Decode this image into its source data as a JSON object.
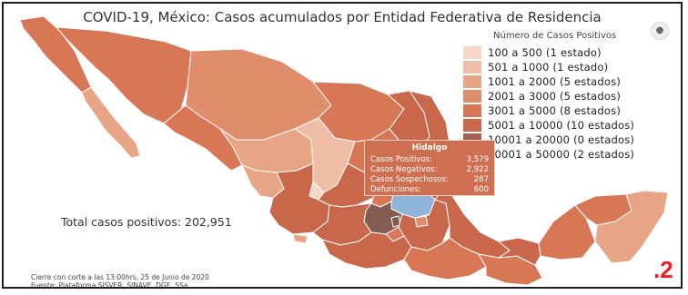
{
  "title": "COVID-19, México: Casos acumulados por Entidad Federativa de Residencia",
  "legend": {
    "title": "Número de Casos Positivos",
    "items": [
      {
        "label": "100 a    500  (1 estado)",
        "color": "#f6d6c6"
      },
      {
        "label": "501 a   1000  (1 estado)",
        "color": "#efbda6"
      },
      {
        "label": "1001 a  2000  (5 estados)",
        "color": "#e8a585"
      },
      {
        "label": "2001 a  3000  (5 estados)",
        "color": "#e08d6b"
      },
      {
        "label": "3001 a  5000  (8 estados)",
        "color": "#d87756"
      },
      {
        "label": "5001 a 10000  (10 estados)",
        "color": "#c8674a"
      },
      {
        "label": "10001 a 20000  (0 estados)",
        "color": "#a85e4e"
      },
      {
        "label": "20001 a 50000  (2 estados)",
        "color": "#845c52"
      }
    ]
  },
  "tooltip": {
    "state": "Hidalgo",
    "rows": [
      {
        "label": "Casos Positivos:",
        "value": "3,579"
      },
      {
        "label": "Casos Negativos:",
        "value": "2,922"
      },
      {
        "label": "Casos Sospechosos:",
        "value": "287"
      },
      {
        "label": "Defunciones:",
        "value": "600"
      }
    ]
  },
  "total": "Total casos positivos: 202,951",
  "footer": {
    "line1": "Cierre con corte a las 13:00hrs, 25 de Junio de 2020",
    "line2": "Fuente: Plataforma SISVER, SINAVE, DGE, SSa."
  },
  "page_number": ".2",
  "map": {
    "highlight_color": "#8fb4dc",
    "border_color": "#ffffff"
  }
}
